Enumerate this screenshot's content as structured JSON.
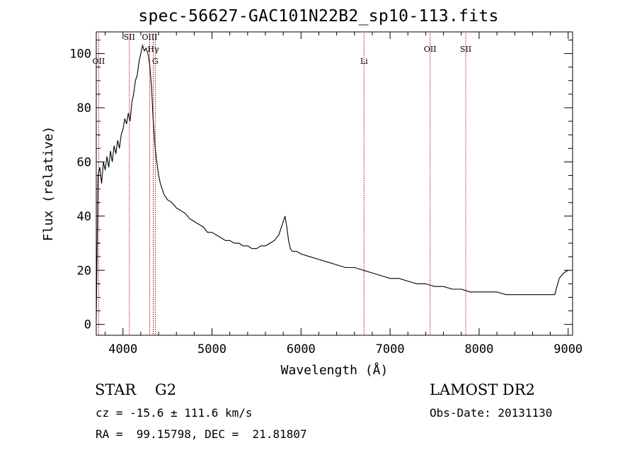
{
  "page": {
    "title": "spec-56627-GAC101N22B2_sp10-113.fits",
    "class": "STAR",
    "subclass": "G2",
    "class_line": "STAR    G2",
    "survey": "LAMOST DR2",
    "cz_line": "cz = -15.6 ± 111.6 km/s",
    "obsdate_line": "Obs-Date: 20131130",
    "radec_line": "RA =  99.15798, DEC =  21.81807"
  },
  "chart_data": {
    "type": "line",
    "title": "spec-56627-GAC101N22B2_sp10-113.fits",
    "xlabel": "Wavelength (Å)",
    "ylabel": "Flux (relative)",
    "xlim": [
      3700,
      9050
    ],
    "ylim": [
      -4,
      108
    ],
    "xticks": [
      4000,
      5000,
      6000,
      7000,
      8000,
      9000
    ],
    "yticks": [
      0,
      20,
      40,
      60,
      80,
      100
    ],
    "grid": false,
    "line_color": "#000000",
    "marker_color": "#a01010",
    "series": [
      {
        "x": [
          3700,
          3720,
          3740,
          3760,
          3780,
          3800,
          3820,
          3840,
          3860,
          3880,
          3900,
          3920,
          3940,
          3960,
          3980,
          4000,
          4020,
          4040,
          4060,
          4080,
          4100,
          4120,
          4140,
          4160,
          4180,
          4200,
          4220,
          4240,
          4260,
          4280,
          4300,
          4320,
          4340,
          4360,
          4380,
          4400,
          4420,
          4440,
          4460,
          4480,
          4500,
          4550,
          4600,
          4650,
          4700,
          4750,
          4800,
          4850,
          4900,
          4950,
          5000,
          5050,
          5100,
          5150,
          5200,
          5250,
          5300,
          5350,
          5400,
          5450,
          5500,
          5550,
          5600,
          5650,
          5700,
          5750,
          5780,
          5800,
          5820,
          5840,
          5860,
          5880,
          5900,
          5950,
          6000,
          6100,
          6200,
          6300,
          6400,
          6500,
          6600,
          6700,
          6800,
          6900,
          7000,
          7100,
          7200,
          7300,
          7400,
          7500,
          7600,
          7700,
          7800,
          7900,
          8000,
          8100,
          8200,
          8300,
          8400,
          8500,
          8600,
          8700,
          8800,
          8850,
          8900,
          8950,
          9000
        ],
        "y": [
          2,
          55,
          58,
          52,
          60,
          57,
          62,
          58,
          64,
          60,
          66,
          63,
          68,
          65,
          70,
          72,
          76,
          74,
          78,
          75,
          82,
          85,
          90,
          92,
          97,
          100,
          103,
          101,
          102,
          100,
          96,
          88,
          75,
          66,
          60,
          55,
          52,
          50,
          48,
          47,
          46,
          45,
          43,
          42,
          41,
          39,
          38,
          37,
          36,
          34,
          34,
          33,
          32,
          31,
          31,
          30,
          30,
          29,
          29,
          28,
          28,
          29,
          29,
          30,
          31,
          33,
          36,
          38,
          40,
          36,
          31,
          28,
          27,
          27,
          26,
          25,
          24,
          23,
          22,
          21,
          21,
          20,
          19,
          18,
          17,
          17,
          16,
          15,
          15,
          14,
          14,
          13,
          13,
          12,
          12,
          12,
          12,
          11,
          11,
          11,
          11,
          11,
          11,
          11,
          17,
          19,
          20
        ]
      }
    ],
    "lines": [
      {
        "label": "OII",
        "wavelength": 3727
      },
      {
        "label": "SII",
        "wavelength": 4072
      },
      {
        "label": "OIII",
        "wavelength": 4300
      },
      {
        "label": "Hγ",
        "wavelength": 4340
      },
      {
        "label": "G",
        "wavelength": 4363
      },
      {
        "label": "Li",
        "wavelength": 6708
      },
      {
        "label": "OII",
        "wavelength": 7450
      },
      {
        "label": "SII",
        "wavelength": 7850
      }
    ]
  }
}
